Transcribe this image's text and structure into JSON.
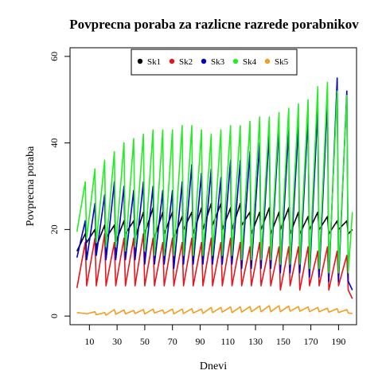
{
  "chart_data": {
    "type": "line",
    "title": "Povprecna poraba za razlicne razrede porabnikov",
    "xlabel": "Dnevi",
    "ylabel": "Povprecna poraba",
    "xlim": [
      -4,
      203
    ],
    "ylim": [
      -2,
      62
    ],
    "xticks": [
      10,
      30,
      50,
      70,
      90,
      110,
      130,
      150,
      170,
      190
    ],
    "yticks": [
      0,
      20,
      40,
      60
    ],
    "grid": false,
    "legend_position": "top-center",
    "series": [
      {
        "name": "Sk1",
        "color": "#000000",
        "x": [
          1,
          7,
          8,
          14,
          15,
          21,
          22,
          28,
          29,
          35,
          36,
          42,
          43,
          49,
          50,
          56,
          57,
          63,
          64,
          70,
          71,
          77,
          78,
          84,
          85,
          91,
          92,
          98,
          99,
          105,
          106,
          112,
          113,
          119,
          120,
          126,
          127,
          133,
          134,
          140,
          141,
          147,
          148,
          154,
          155,
          161,
          162,
          168,
          169,
          175,
          176,
          182,
          183,
          189,
          190,
          196,
          197,
          200
        ],
        "y": [
          15,
          19,
          17,
          20,
          16,
          21,
          18,
          21,
          17,
          22,
          19,
          22,
          18,
          24,
          19,
          25,
          18,
          24,
          19,
          24,
          18,
          23,
          20,
          24,
          19,
          25,
          20,
          26,
          21,
          26,
          20,
          25,
          20,
          26,
          21,
          24,
          19,
          24,
          20,
          25,
          19,
          24,
          20,
          25,
          19,
          24,
          19,
          23,
          20,
          24,
          20,
          23,
          19,
          22,
          20,
          22,
          19,
          20
        ]
      },
      {
        "name": "Sk2",
        "color": "#e8161c",
        "x": [
          1,
          7,
          8,
          14,
          15,
          21,
          22,
          28,
          29,
          35,
          36,
          42,
          43,
          49,
          50,
          56,
          57,
          63,
          64,
          70,
          71,
          77,
          78,
          84,
          85,
          91,
          92,
          98,
          99,
          105,
          106,
          112,
          113,
          119,
          120,
          126,
          127,
          133,
          134,
          140,
          141,
          147,
          148,
          154,
          155,
          161,
          162,
          168,
          169,
          175,
          176,
          182,
          183,
          189,
          190,
          196,
          197,
          200
        ],
        "y": [
          6.5,
          17,
          7,
          18,
          7,
          19,
          7,
          17,
          7,
          18,
          7,
          18,
          7,
          19,
          7,
          18,
          7,
          17,
          7,
          18,
          7,
          17,
          7,
          18,
          7,
          17,
          7,
          18,
          7,
          17,
          7,
          18,
          7,
          17,
          7,
          16,
          7,
          17,
          7,
          16,
          7,
          16,
          6,
          16,
          7,
          16,
          6,
          16,
          7,
          15,
          7,
          16,
          6,
          15,
          7,
          14,
          6,
          4
        ]
      },
      {
        "name": "Sk3",
        "color": "#0000cc",
        "x": [
          1,
          7,
          8,
          14,
          15,
          21,
          22,
          28,
          29,
          35,
          36,
          42,
          43,
          49,
          50,
          56,
          57,
          63,
          64,
          70,
          71,
          77,
          78,
          84,
          85,
          91,
          92,
          98,
          99,
          105,
          106,
          112,
          113,
          119,
          120,
          126,
          127,
          133,
          134,
          140,
          141,
          147,
          148,
          154,
          155,
          161,
          162,
          168,
          169,
          175,
          176,
          182,
          183,
          189,
          190,
          196,
          197,
          200
        ],
        "y": [
          13.5,
          22,
          13,
          26,
          14,
          28,
          13,
          31,
          13,
          30,
          13,
          29,
          13,
          31,
          12,
          30,
          12,
          29,
          12,
          29,
          11,
          31,
          12,
          35,
          12,
          33,
          12,
          34,
          12,
          32,
          12,
          36,
          12,
          36,
          11,
          38,
          11,
          40,
          11,
          42,
          11,
          44,
          10,
          43,
          10,
          44,
          10,
          46,
          9,
          48,
          9,
          50,
          8,
          55,
          8,
          52,
          8,
          6
        ]
      },
      {
        "name": "Sk4",
        "color": "#22ee22",
        "x": [
          1,
          7,
          8,
          14,
          15,
          21,
          22,
          28,
          29,
          35,
          36,
          42,
          43,
          49,
          50,
          56,
          57,
          63,
          64,
          70,
          71,
          77,
          78,
          84,
          85,
          91,
          92,
          98,
          99,
          105,
          106,
          112,
          113,
          119,
          120,
          126,
          127,
          133,
          134,
          140,
          141,
          147,
          148,
          154,
          155,
          161,
          162,
          168,
          169,
          175,
          176,
          182,
          183,
          189,
          190,
          196,
          197,
          200
        ],
        "y": [
          19.5,
          31,
          18,
          34,
          17,
          36,
          16,
          38,
          16,
          40,
          15,
          41,
          16,
          42,
          15,
          43,
          14,
          43,
          14,
          43,
          14,
          44,
          14,
          44,
          14,
          43,
          14,
          42,
          14,
          43,
          14,
          44,
          14,
          44,
          13,
          45,
          13,
          46,
          13,
          46,
          13,
          47,
          12,
          48,
          12,
          49,
          12,
          50,
          11,
          53,
          11,
          54,
          10,
          52,
          10,
          51,
          10,
          24
        ]
      },
      {
        "name": "Sk5",
        "color": "#f59d1e",
        "x": [
          1,
          7,
          8,
          14,
          15,
          21,
          22,
          28,
          29,
          35,
          36,
          42,
          43,
          49,
          50,
          56,
          57,
          63,
          64,
          70,
          71,
          77,
          78,
          84,
          85,
          91,
          92,
          98,
          99,
          105,
          106,
          112,
          113,
          119,
          120,
          126,
          127,
          133,
          134,
          140,
          141,
          147,
          148,
          154,
          155,
          161,
          162,
          168,
          169,
          175,
          176,
          182,
          183,
          189,
          190,
          196,
          197,
          200
        ],
        "y": [
          0.8,
          0.6,
          0.5,
          1,
          0.3,
          0.8,
          0.2,
          1.5,
          0.4,
          1.4,
          0.5,
          1.3,
          0.6,
          1.5,
          0.5,
          1.6,
          0.7,
          1.4,
          0.6,
          1.6,
          0.5,
          1.6,
          0.6,
          1.7,
          0.7,
          1.6,
          0.6,
          2,
          0.8,
          2,
          0.9,
          2.1,
          0.8,
          2.1,
          0.9,
          2.2,
          1,
          2.3,
          1,
          2.4,
          1,
          2.4,
          1,
          2.3,
          1.1,
          2.2,
          1.1,
          2.1,
          1,
          2,
          1,
          1.8,
          0.9,
          1.7,
          0.8,
          1.5,
          0.7,
          0.6
        ]
      }
    ]
  }
}
